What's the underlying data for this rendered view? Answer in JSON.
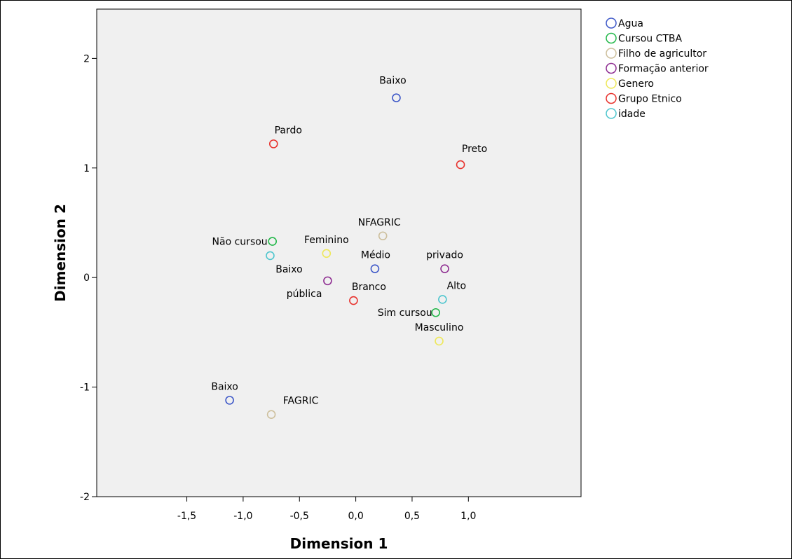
{
  "chart_data": {
    "type": "scatter",
    "xlabel": "Dimension 1",
    "ylabel": "Dimension 2",
    "xlim": [
      -2.3,
      2.0
    ],
    "ylim": [
      -2.0,
      2.45
    ],
    "xticks": [
      -1.5,
      -1.0,
      -0.5,
      0.0,
      0.5,
      1.0
    ],
    "xtick_labels": [
      "-1,5",
      "-1,0",
      "-0,5",
      "0,0",
      "0,5",
      "1,0"
    ],
    "yticks": [
      -2,
      -1,
      0,
      1,
      2
    ],
    "ytick_labels": [
      "-2",
      "-1",
      "0",
      "1",
      "2"
    ],
    "grid": false,
    "legend_position": "right",
    "plot_background": "#f0f0f0",
    "series": [
      {
        "name": "Agua",
        "color": "#3e58c8",
        "points": [
          {
            "label": "Baixo",
            "x": 0.36,
            "y": 1.64
          },
          {
            "label": "Médio",
            "x": 0.17,
            "y": 0.08
          },
          {
            "label": "Baixo",
            "x": -1.12,
            "y": -1.12
          }
        ]
      },
      {
        "name": "Cursou CTBA",
        "color": "#23b84a",
        "points": [
          {
            "label": "Não cursou",
            "x": -0.74,
            "y": 0.33
          },
          {
            "label": "Sim cursou",
            "x": 0.71,
            "y": -0.32
          }
        ]
      },
      {
        "name": "Filho de agricultor",
        "color": "#cdbf9c",
        "points": [
          {
            "label": "NFAGRIC",
            "x": 0.24,
            "y": 0.38
          },
          {
            "label": "FAGRIC",
            "x": -0.75,
            "y": -1.25
          }
        ]
      },
      {
        "name": "Formação anterior",
        "color": "#8e2d91",
        "points": [
          {
            "label": "privado",
            "x": 0.79,
            "y": 0.08
          },
          {
            "label": "pública",
            "x": -0.25,
            "y": -0.03
          }
        ]
      },
      {
        "name": "Genero",
        "color": "#eee85a",
        "points": [
          {
            "label": "Feminino",
            "x": -0.26,
            "y": 0.22
          },
          {
            "label": "Masculino",
            "x": 0.74,
            "y": -0.58
          }
        ]
      },
      {
        "name": "Grupo Etnico",
        "color": "#e8322d",
        "points": [
          {
            "label": "Pardo",
            "x": -0.73,
            "y": 1.22
          },
          {
            "label": "Preto",
            "x": 0.93,
            "y": 1.03
          },
          {
            "label": "Branco",
            "x": -0.02,
            "y": -0.21
          }
        ]
      },
      {
        "name": "idade",
        "color": "#4fc6ce",
        "points": [
          {
            "label": "Baixo",
            "x": -0.76,
            "y": 0.2
          },
          {
            "label": "Alto",
            "x": 0.77,
            "y": -0.2
          }
        ]
      }
    ]
  }
}
